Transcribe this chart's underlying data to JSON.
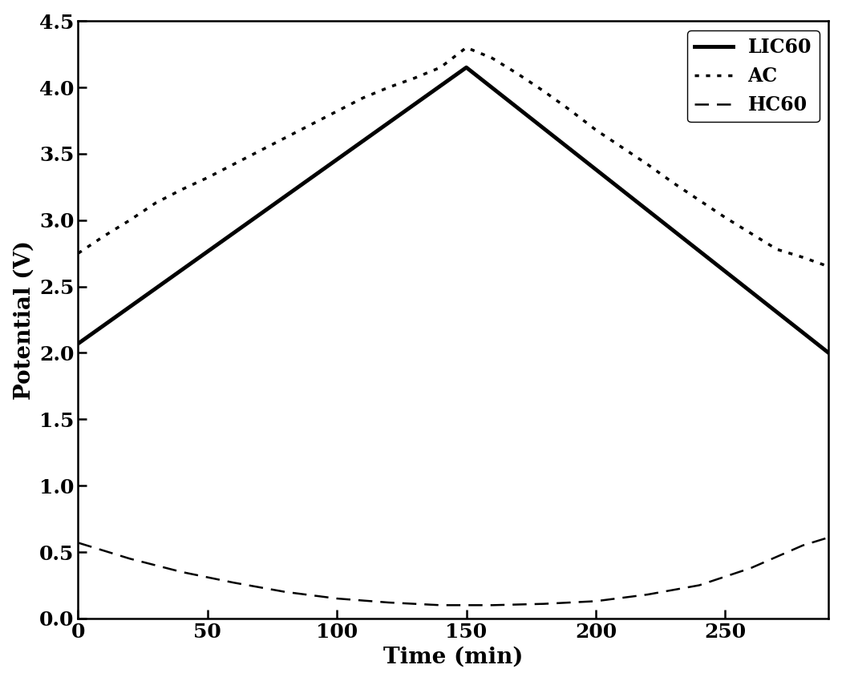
{
  "LIC60": {
    "x": [
      0,
      150,
      290
    ],
    "y": [
      2.07,
      4.15,
      2.0
    ],
    "linewidth": 3.5,
    "color": "#000000",
    "label": "LIC60"
  },
  "AC": {
    "x": [
      0,
      10,
      20,
      30,
      40,
      50,
      60,
      70,
      80,
      90,
      100,
      110,
      120,
      130,
      140,
      150,
      160,
      170,
      180,
      190,
      200,
      210,
      220,
      230,
      240,
      250,
      260,
      270,
      280,
      290
    ],
    "y": [
      2.75,
      2.88,
      3.0,
      3.13,
      3.23,
      3.32,
      3.42,
      3.52,
      3.62,
      3.72,
      3.82,
      3.92,
      4.0,
      4.07,
      4.15,
      4.3,
      4.22,
      4.1,
      3.97,
      3.83,
      3.68,
      3.55,
      3.42,
      3.28,
      3.15,
      3.02,
      2.9,
      2.78,
      2.72,
      2.65
    ],
    "linewidth": 2.5,
    "color": "#000000",
    "label": "AC"
  },
  "HC60": {
    "x": [
      0,
      20,
      40,
      60,
      80,
      100,
      120,
      140,
      150,
      160,
      180,
      200,
      220,
      240,
      260,
      280,
      290
    ],
    "y": [
      0.57,
      0.45,
      0.35,
      0.27,
      0.2,
      0.15,
      0.12,
      0.1,
      0.1,
      0.1,
      0.11,
      0.13,
      0.18,
      0.25,
      0.38,
      0.55,
      0.61
    ],
    "linewidth": 1.8,
    "color": "#000000",
    "label": "HC60"
  },
  "xlabel": "Time (min)",
  "ylabel": "Potential (V)",
  "xlim": [
    0,
    290
  ],
  "ylim": [
    0,
    4.5
  ],
  "xticks": [
    0,
    50,
    100,
    150,
    200,
    250
  ],
  "yticks": [
    0.0,
    0.5,
    1.0,
    1.5,
    2.0,
    2.5,
    3.0,
    3.5,
    4.0,
    4.5
  ],
  "legend_loc": "upper right",
  "background_color": "#ffffff",
  "xlabel_fontsize": 20,
  "ylabel_fontsize": 20,
  "tick_fontsize": 18,
  "legend_fontsize": 17
}
